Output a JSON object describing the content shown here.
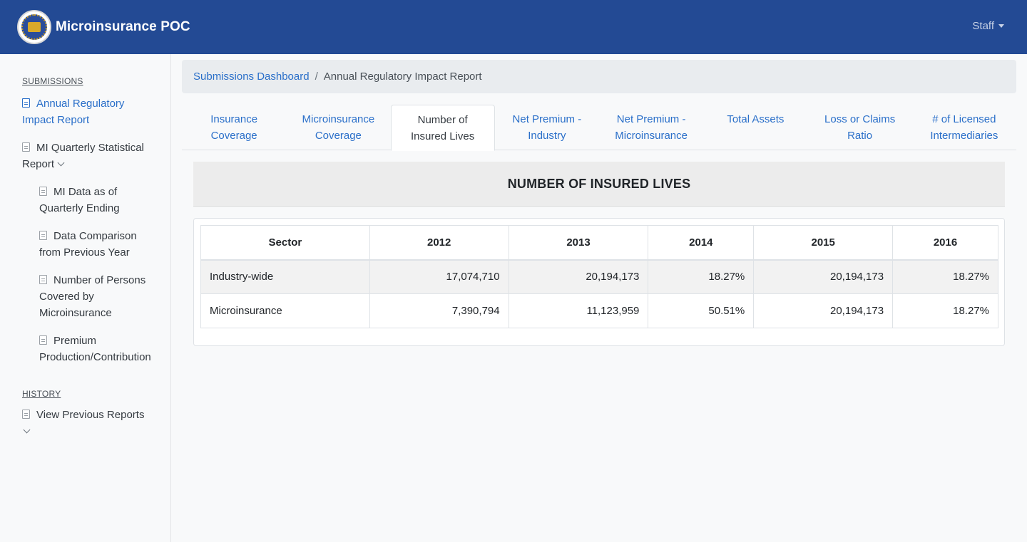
{
  "navbar": {
    "brand": "Microinsurance POC",
    "user_menu": "Staff",
    "logo_icon": "seal-logo-icon"
  },
  "sidebar": {
    "submissions_heading": "SUBMISSIONS",
    "items": [
      {
        "label": "Annual Regulatory Impact Report",
        "line1": "Annual Regulatory",
        "line2": "Impact Report",
        "active": true
      },
      {
        "label": "MI Quarterly Statistical Report",
        "line1": "MI Quarterly Statistical",
        "line2": "Report",
        "expandable": true
      },
      {
        "label": "MI Data as of Quarterly Ending",
        "line1": "MI Data as of",
        "line2": "Quarterly Ending"
      },
      {
        "label": "Data Comparison from Previous Year",
        "line1": "Data Comparison",
        "line2": "from Previous Year"
      },
      {
        "label": "Number of Persons Covered by Microinsurance",
        "line1": "Number of Persons",
        "line2": "Covered by",
        "line3": "Microinsurance"
      },
      {
        "label": "Premium Production/Contribution",
        "line1": "Premium",
        "line2": "Production/Contribution"
      }
    ],
    "history_heading": "HISTORY",
    "history_items": [
      {
        "label": "View Previous Reports",
        "expandable": true
      }
    ]
  },
  "breadcrumb": {
    "link": "Submissions Dashboard",
    "separator": "/",
    "current": "Annual Regulatory Impact Report"
  },
  "tabs": [
    {
      "line1": "Insurance",
      "line2": "Coverage"
    },
    {
      "line1": "Microinsurance",
      "line2": "Coverage"
    },
    {
      "line1": "Number of",
      "line2": "Insured Lives",
      "active": true
    },
    {
      "line1": "Net Premium -",
      "line2": "Industry"
    },
    {
      "line1": "Net Premium -",
      "line2": "Microinsurance"
    },
    {
      "line1": "Total Assets",
      "line2": ""
    },
    {
      "line1": "Loss or Claims",
      "line2": "Ratio"
    },
    {
      "line1": "# of Licensed",
      "line2": "Intermediaries"
    }
  ],
  "panel": {
    "title": "NUMBER OF INSURED LIVES"
  },
  "table": {
    "headers": [
      "Sector",
      "2012",
      "2013",
      "2014",
      "2015",
      "2016"
    ],
    "rows": [
      [
        "Industry-wide",
        "17,074,710",
        "20,194,173",
        "18.27%",
        "20,194,173",
        "18.27%"
      ],
      [
        "Microinsurance",
        "7,390,794",
        "11,123,959",
        "50.51%",
        "20,194,173",
        "18.27%"
      ]
    ]
  },
  "colors": {
    "navbar": "#234a94",
    "link": "#2a6fc9",
    "breadcrumb_bg": "#e9ecef"
  }
}
